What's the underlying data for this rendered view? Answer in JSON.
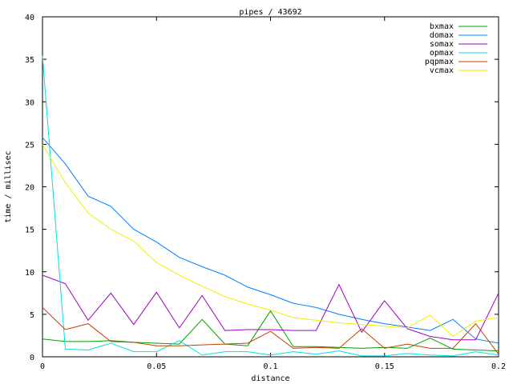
{
  "chart_data": {
    "type": "line",
    "title": "pipes / 43692",
    "xlabel": "distance",
    "ylabel": "time / millisec",
    "xlim": [
      0,
      0.2
    ],
    "ylim": [
      0,
      40
    ],
    "xticks": [
      0,
      0.05,
      0.1,
      0.15,
      0.2
    ],
    "xtick_labels": [
      "0",
      "0.05",
      "0.1",
      "0.15",
      "0.2"
    ],
    "yticks": [
      0,
      5,
      10,
      15,
      20,
      25,
      30,
      35,
      40
    ],
    "ytick_labels": [
      "0",
      "5",
      "10",
      "15",
      "20",
      "25",
      "30",
      "35",
      "40"
    ],
    "grid": false,
    "legend_position": "top-right",
    "x": [
      0,
      0.01,
      0.02,
      0.03,
      0.04,
      0.05,
      0.06,
      0.07,
      0.08,
      0.09,
      0.1,
      0.11,
      0.12,
      0.13,
      0.14,
      0.15,
      0.16,
      0.17,
      0.18,
      0.19,
      0.2
    ],
    "series": [
      {
        "name": "bxmax",
        "color": "#00a000",
        "values": [
          2.1,
          1.8,
          1.8,
          1.9,
          1.7,
          1.6,
          1.5,
          4.4,
          1.5,
          1.3,
          5.4,
          1.2,
          1.2,
          1.1,
          1.0,
          1.1,
          1.0,
          2.2,
          0.9,
          0.8,
          0.7
        ]
      },
      {
        "name": "domax",
        "color": "#0080ff",
        "values": [
          25.8,
          22.7,
          18.9,
          17.7,
          15.0,
          13.5,
          11.7,
          10.6,
          9.6,
          8.2,
          7.3,
          6.3,
          5.8,
          5.0,
          4.4,
          3.9,
          3.5,
          3.1,
          4.4,
          2.1,
          1.6
        ]
      },
      {
        "name": "somax",
        "color": "#a000c0",
        "values": [
          9.6,
          8.6,
          4.3,
          7.5,
          3.8,
          7.6,
          3.4,
          7.2,
          3.1,
          3.2,
          3.2,
          3.1,
          3.1,
          8.5,
          2.9,
          6.6,
          3.3,
          2.4,
          2.0,
          2.0,
          7.5
        ]
      },
      {
        "name": "opmax",
        "color": "#00e0e0",
        "values": [
          35.4,
          0.9,
          0.8,
          1.6,
          0.6,
          0.6,
          1.9,
          0.2,
          0.6,
          0.6,
          0.2,
          0.6,
          0.3,
          0.7,
          0.1,
          0.1,
          0.4,
          0.2,
          0.1,
          0.6,
          0.2
        ]
      },
      {
        "name": "pqpmax",
        "color": "#c04000",
        "values": [
          5.8,
          3.2,
          3.9,
          1.8,
          1.7,
          1.3,
          1.3,
          1.4,
          1.5,
          1.6,
          3.0,
          1.0,
          1.1,
          1.0,
          3.3,
          1.0,
          1.5,
          1.0,
          1.0,
          3.9,
          0.3
        ]
      },
      {
        "name": "vcmax",
        "color": "#f0f000",
        "values": [
          25.0,
          20.5,
          16.9,
          15.0,
          13.6,
          11.1,
          9.6,
          8.3,
          7.1,
          6.2,
          5.5,
          4.6,
          4.3,
          4.0,
          3.8,
          3.6,
          3.4,
          4.9,
          2.4,
          4.2,
          4.6
        ]
      }
    ]
  }
}
